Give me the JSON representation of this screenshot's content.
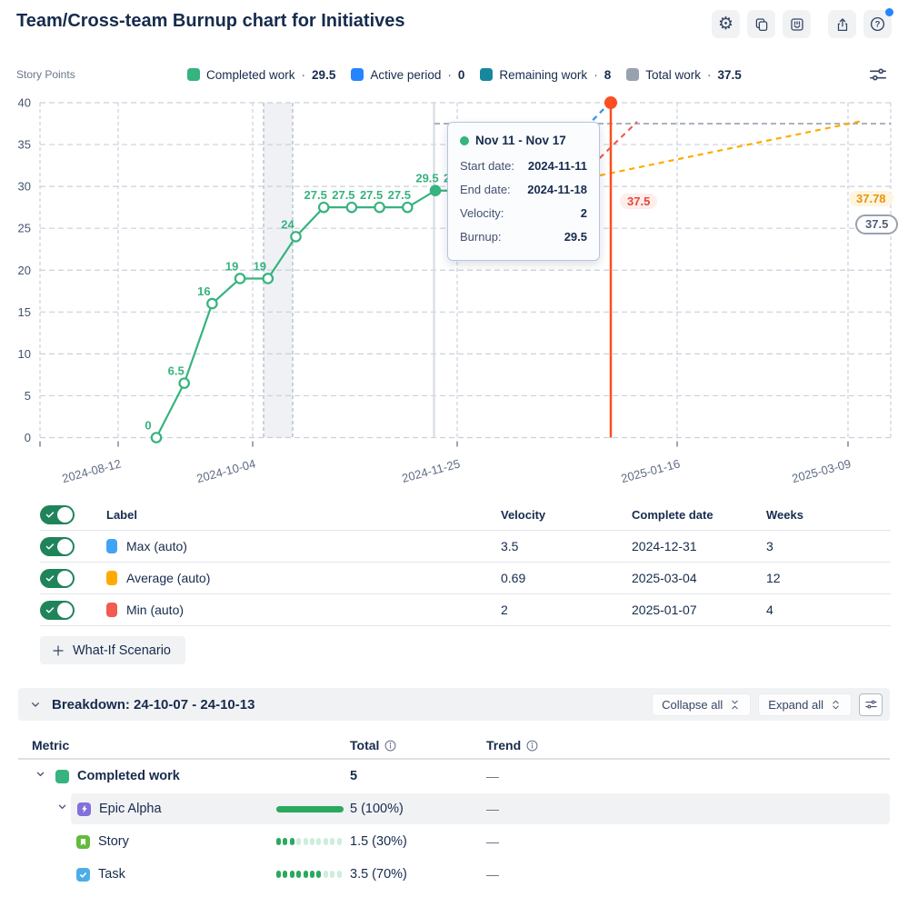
{
  "header": {
    "title": "Team/Cross-team Burnup chart for Initiatives",
    "toolbar_icons": [
      "settings-icon",
      "copy-icon",
      "high-five-icon",
      "export-icon",
      "help-icon"
    ]
  },
  "colors": {
    "completed": "#36b37e",
    "active": "#2684ff",
    "remaining": "#17879c",
    "total": "#98a1b0",
    "max": "#42a3f5",
    "average": "#ffab00",
    "min": "#f15b50",
    "max_line": "#3390f5",
    "forecast_marker": "#fb4e21",
    "toggle_on": "#1f845a",
    "progress": "#2aa95f",
    "progress_faint": "#cdeedd",
    "epic": "#8270db",
    "story": "#63ba3c",
    "task": "#4cade8"
  },
  "legend": {
    "axis_label": "Story Points",
    "separator": "·",
    "items": [
      {
        "label": "Completed work",
        "value": "29.5"
      },
      {
        "label": "Active period",
        "value": "0"
      },
      {
        "label": "Remaining work",
        "value": "8"
      },
      {
        "label": "Total work",
        "value": "37.5"
      }
    ]
  },
  "chart_data": {
    "type": "line",
    "title": "Team/Cross-team Burnup chart for Initiatives",
    "ylabel": "Story Points",
    "ylim": [
      0,
      40
    ],
    "yticks": [
      0,
      5,
      10,
      15,
      20,
      25,
      30,
      35,
      40
    ],
    "xticks": [
      "2024-08-12",
      "2024-10-04",
      "2024-11-25",
      "2025-01-16",
      "2025-03-09"
    ],
    "grid": true,
    "series": [
      {
        "name": "Completed work",
        "type": "line",
        "color": "#36b37e",
        "values": [
          0,
          6.5,
          16,
          19,
          19,
          24,
          27.5,
          27.5,
          27.5,
          27.5,
          29.5,
          29.5
        ],
        "selected_index": 10
      },
      {
        "name": "Max (auto) forecast",
        "type": "dashed-trend",
        "color": "#3390f5",
        "endpoint_value": 37.5,
        "complete_date": "2024-12-31"
      },
      {
        "name": "Average (auto) forecast",
        "type": "dashed-trend",
        "color": "#ffab00",
        "endpoint_value": 37.78,
        "complete_date": "2025-03-04"
      },
      {
        "name": "Min (auto) forecast",
        "type": "dashed-trend",
        "color": "#f15b50",
        "endpoint_value": 37.5,
        "complete_date": "2025-01-07"
      }
    ],
    "annotations": {
      "total_work_line": 37.5,
      "highlighted_week": "2024-10-07 - 2024-10-13",
      "forecast_marker_date": "2025-01-07",
      "badges": {
        "min": "37.5",
        "average": "37.78",
        "total": "37.5"
      }
    }
  },
  "tooltip": {
    "title": "Nov 11 - Nov 17",
    "rows": [
      {
        "label": "Start date:",
        "value": "2024-11-11"
      },
      {
        "label": "End date:",
        "value": "2024-11-18"
      },
      {
        "label": "Velocity:",
        "value": "2"
      },
      {
        "label": "Burnup:",
        "value": "29.5"
      }
    ]
  },
  "trend_table": {
    "headers": [
      "Label",
      "Velocity",
      "Complete date",
      "Weeks"
    ],
    "rows": [
      {
        "label": "Max (auto)",
        "velocity": "3.5",
        "complete_date": "2024-12-31",
        "weeks": "3",
        "enabled": true
      },
      {
        "label": "Average (auto)",
        "velocity": "0.69",
        "complete_date": "2025-03-04",
        "weeks": "12",
        "enabled": true
      },
      {
        "label": "Min (auto)",
        "velocity": "2",
        "complete_date": "2025-01-07",
        "weeks": "4",
        "enabled": true
      }
    ]
  },
  "whatif_button": "What-If Scenario",
  "breakdown": {
    "title": "Breakdown: 24-10-07 - 24-10-13",
    "collapse_all": "Collapse all",
    "expand_all": "Expand all",
    "table": {
      "headers": [
        "Metric",
        "Total",
        "Trend"
      ],
      "rows": [
        {
          "label": "Completed work",
          "total": "5",
          "trend": "—"
        },
        {
          "label": "Epic Alpha",
          "total": "5 (100%)",
          "trend": "—",
          "progress_percent": 100
        },
        {
          "label": "Story",
          "total": "1.5 (30%)",
          "trend": "—",
          "dots": {
            "filled": 3,
            "total": 10
          }
        },
        {
          "label": "Task",
          "total": "3.5 (70%)",
          "trend": "—",
          "dots": {
            "filled": 7,
            "total": 10
          }
        }
      ]
    }
  }
}
